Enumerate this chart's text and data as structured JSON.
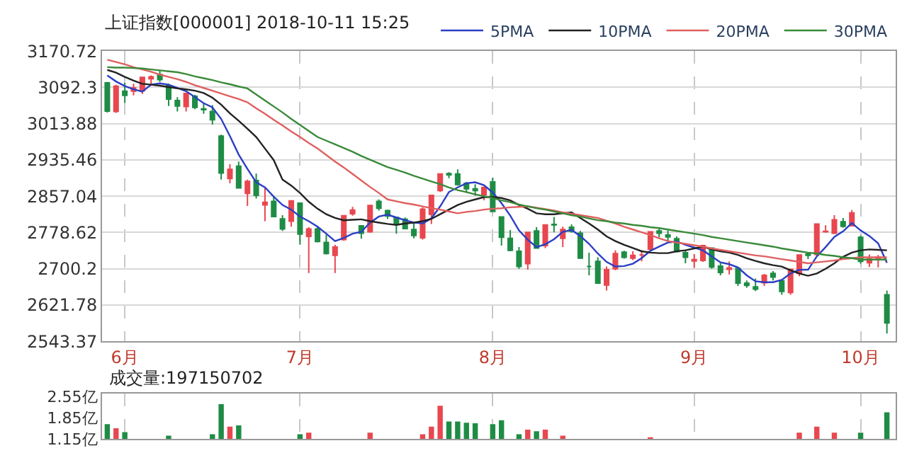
{
  "chart_data": [
    {
      "type": "candlestick",
      "title": "上证指数[000001] 2018-10-11 15:25",
      "categories": [
        null,
        null,
        "6月",
        null,
        null,
        null,
        null,
        null,
        null,
        null,
        null,
        null,
        null,
        null,
        null,
        null,
        null,
        null,
        null,
        null,
        null,
        null,
        "7月",
        null,
        null,
        null,
        null,
        null,
        null,
        null,
        null,
        null,
        null,
        null,
        null,
        null,
        null,
        null,
        null,
        null,
        null,
        null,
        null,
        null,
        "8月",
        null,
        null,
        null,
        null,
        null,
        null,
        null,
        null,
        null,
        null,
        null,
        null,
        null,
        null,
        null,
        null,
        null,
        null,
        null,
        null,
        null,
        null,
        "9月",
        null,
        null,
        null,
        null,
        null,
        null,
        null,
        null,
        null,
        null,
        null,
        null,
        null,
        null,
        null,
        null,
        null,
        null,
        "10月",
        null,
        null,
        null
      ],
      "ohlc": [
        [
          3102,
          3104,
          3038,
          3041
        ],
        [
          3040,
          3098,
          3037,
          3095
        ],
        [
          3084,
          3102,
          3059,
          3075
        ],
        [
          3084,
          3100,
          3075,
          3091
        ],
        [
          3085,
          3115,
          3078,
          3114
        ],
        [
          3111,
          3118,
          3098,
          3115
        ],
        [
          3120,
          3128,
          3104,
          3109
        ],
        [
          3096,
          3100,
          3052,
          3067
        ],
        [
          3064,
          3071,
          3040,
          3052
        ],
        [
          3051,
          3081,
          3040,
          3079
        ],
        [
          3073,
          3076,
          3045,
          3049
        ],
        [
          3046,
          3059,
          3035,
          3044
        ],
        [
          3040,
          3054,
          3012,
          3022
        ],
        [
          2987,
          2990,
          2893,
          2907
        ],
        [
          2895,
          2926,
          2885,
          2915
        ],
        [
          2922,
          2932,
          2874,
          2875
        ],
        [
          2863,
          2893,
          2836,
          2889
        ],
        [
          2891,
          2906,
          2852,
          2859
        ],
        [
          2838,
          2874,
          2803,
          2844
        ],
        [
          2846,
          2856,
          2812,
          2813
        ],
        [
          2808,
          2816,
          2782,
          2786
        ],
        [
          2803,
          2848,
          2791,
          2847
        ],
        [
          2842,
          2842,
          2752,
          2775
        ],
        [
          2770,
          2790,
          2691,
          2786
        ],
        [
          2786,
          2793,
          2757,
          2759
        ],
        [
          2757,
          2774,
          2731,
          2733
        ],
        [
          2729,
          2752,
          2691,
          2747
        ],
        [
          2763,
          2815,
          2761,
          2815
        ],
        [
          2819,
          2834,
          2815,
          2827
        ],
        [
          2793,
          2793,
          2765,
          2777
        ],
        [
          2780,
          2837,
          2778,
          2837
        ],
        [
          2846,
          2850,
          2826,
          2831
        ],
        [
          2826,
          2828,
          2808,
          2814
        ],
        [
          2811,
          2812,
          2776,
          2798
        ],
        [
          2807,
          2811,
          2787,
          2787
        ],
        [
          2785,
          2799,
          2766,
          2772
        ],
        [
          2767,
          2833,
          2763,
          2829
        ],
        [
          2818,
          2860,
          2797,
          2859
        ],
        [
          2869,
          2905,
          2866,
          2905
        ],
        [
          2906,
          2909,
          2896,
          2903
        ],
        [
          2905,
          2915,
          2880,
          2882
        ],
        [
          2885,
          2888,
          2864,
          2873
        ],
        [
          2873,
          2883,
          2858,
          2869
        ],
        [
          2860,
          2878,
          2848,
          2876
        ],
        [
          2888,
          2897,
          2823,
          2824
        ],
        [
          2812,
          2813,
          2750,
          2768
        ],
        [
          2766,
          2784,
          2738,
          2740
        ],
        [
          2738,
          2747,
          2700,
          2705
        ],
        [
          2711,
          2779,
          2698,
          2779
        ],
        [
          2782,
          2790,
          2745,
          2745
        ],
        [
          2750,
          2796,
          2745,
          2795
        ],
        [
          2796,
          2812,
          2779,
          2795
        ],
        [
          2766,
          2791,
          2747,
          2785
        ],
        [
          2790,
          2796,
          2778,
          2781
        ],
        [
          2777,
          2782,
          2723,
          2723
        ],
        [
          2705,
          2735,
          2686,
          2705
        ],
        [
          2716,
          2725,
          2669,
          2669
        ],
        [
          2665,
          2705,
          2653,
          2698
        ],
        [
          2700,
          2740,
          2697,
          2733
        ],
        [
          2736,
          2739,
          2722,
          2725
        ],
        [
          2723,
          2738,
          2719,
          2729
        ],
        [
          2730,
          2740,
          2716,
          2730
        ],
        [
          2742,
          2780,
          2742,
          2780
        ],
        [
          2782,
          2790,
          2768,
          2777
        ],
        [
          2773,
          2783,
          2759,
          2769
        ],
        [
          2765,
          2770,
          2736,
          2737
        ],
        [
          2735,
          2741,
          2712,
          2725
        ],
        [
          2717,
          2732,
          2702,
          2720
        ],
        [
          2718,
          2752,
          2715,
          2750
        ],
        [
          2745,
          2745,
          2700,
          2704
        ],
        [
          2706,
          2712,
          2686,
          2692
        ],
        [
          2699,
          2716,
          2688,
          2702
        ],
        [
          2701,
          2703,
          2663,
          2669
        ],
        [
          2669,
          2675,
          2659,
          2664
        ],
        [
          2661,
          2679,
          2652,
          2656
        ],
        [
          2670,
          2689,
          2663,
          2686
        ],
        [
          2690,
          2695,
          2675,
          2682
        ],
        [
          2674,
          2676,
          2644,
          2651
        ],
        [
          2649,
          2699,
          2644,
          2699
        ],
        [
          2690,
          2731,
          2684,
          2730
        ],
        [
          2732,
          2735,
          2721,
          2729
        ],
        [
          2731,
          2797,
          2727,
          2797
        ],
        [
          2780,
          2794,
          2778,
          2781
        ],
        [
          2777,
          2816,
          2775,
          2806
        ],
        [
          2802,
          2810,
          2789,
          2792
        ],
        [
          2793,
          2827,
          2793,
          2821
        ],
        [
          2768,
          2772,
          2711,
          2716
        ],
        [
          2713,
          2731,
          2704,
          2721
        ],
        [
          2723,
          2730,
          2703,
          2725
        ],
        [
          2644,
          2653,
          2560,
          2583
        ]
      ],
      "colors": [
        "#1e8c45",
        "#e8474f",
        "#1e8c45",
        "#e8474f",
        "#e8474f",
        "#e8474f",
        "#1e8c45",
        "#1e8c45",
        "#1e8c45",
        "#e8474f",
        "#1e8c45",
        "#1e8c45",
        "#1e8c45",
        "#1e8c45",
        "#e8474f",
        "#1e8c45",
        "#e8474f",
        "#1e8c45",
        "#e8474f",
        "#1e8c45",
        "#1e8c45",
        "#e8474f",
        "#1e8c45",
        "#e8474f",
        "#1e8c45",
        "#1e8c45",
        "#e8474f",
        "#e8474f",
        "#e8474f",
        "#1e8c45",
        "#e8474f",
        "#1e8c45",
        "#1e8c45",
        "#1e8c45",
        "#1e8c45",
        "#1e8c45",
        "#e8474f",
        "#e8474f",
        "#e8474f",
        "#1e8c45",
        "#1e8c45",
        "#1e8c45",
        "#1e8c45",
        "#e8474f",
        "#1e8c45",
        "#1e8c45",
        "#1e8c45",
        "#1e8c45",
        "#e8474f",
        "#1e8c45",
        "#e8474f",
        "#1e8c45",
        "#e8474f",
        "#1e8c45",
        "#1e8c45",
        "#1e8c45",
        "#1e8c45",
        "#e8474f",
        "#e8474f",
        "#1e8c45",
        "#e8474f",
        "#e8474f",
        "#e8474f",
        "#1e8c45",
        "#1e8c45",
        "#1e8c45",
        "#1e8c45",
        "#e8474f",
        "#e8474f",
        "#1e8c45",
        "#1e8c45",
        "#e8474f",
        "#1e8c45",
        "#1e8c45",
        "#1e8c45",
        "#e8474f",
        "#1e8c45",
        "#1e8c45",
        "#e8474f",
        "#e8474f",
        "#1e8c45",
        "#e8474f",
        "#e8474f",
        "#e8474f",
        "#1e8c45",
        "#e8474f",
        "#1e8c45",
        "#e8474f",
        "#e8474f",
        "#1e8c45"
      ],
      "series": [
        {
          "name": "5PMA",
          "type": "line",
          "color": "#2b3fc4",
          "values": [
            3118,
            3105,
            3095,
            3088,
            3083,
            3098,
            3101,
            3098,
            3091,
            3084,
            3071,
            3058,
            3049,
            3024,
            2987,
            2947,
            2916,
            2887,
            2876,
            2856,
            2838,
            2828,
            2813,
            2803,
            2791,
            2776,
            2760,
            2767,
            2776,
            2780,
            2800,
            2813,
            2817,
            2811,
            2805,
            2800,
            2798,
            2809,
            2835,
            2866,
            2876,
            2885,
            2887,
            2881,
            2865,
            2842,
            2815,
            2783,
            2763,
            2747,
            2753,
            2764,
            2780,
            2784,
            2771,
            2754,
            2733,
            2715,
            2705,
            2706,
            2711,
            2723,
            2739,
            2748,
            2757,
            2759,
            2752,
            2746,
            2740,
            2727,
            2714,
            2710,
            2703,
            2686,
            2673,
            2671,
            2671,
            2676,
            2690,
            2698,
            2698,
            2727,
            2747,
            2769,
            2781,
            2799,
            2783,
            2771,
            2755,
            2713
          ]
        },
        {
          "name": "10PMA",
          "type": "line",
          "color": "#222222",
          "values": [
            3130,
            3124,
            3115,
            3107,
            3100,
            3098,
            3096,
            3093,
            3090,
            3088,
            3085,
            3080,
            3070,
            3055,
            3036,
            3020,
            3003,
            2985,
            2960,
            2935,
            2893,
            2880,
            2864,
            2845,
            2830,
            2818,
            2810,
            2805,
            2806,
            2807,
            2803,
            2800,
            2797,
            2795,
            2798,
            2800,
            2803,
            2808,
            2818,
            2828,
            2838,
            2845,
            2850,
            2855,
            2855,
            2853,
            2848,
            2838,
            2830,
            2820,
            2818,
            2818,
            2820,
            2822,
            2810,
            2798,
            2785,
            2770,
            2760,
            2752,
            2745,
            2738,
            2735,
            2734,
            2734,
            2738,
            2740,
            2744,
            2748,
            2742,
            2738,
            2735,
            2730,
            2723,
            2717,
            2712,
            2708,
            2705,
            2697,
            2690,
            2685,
            2690,
            2700,
            2712,
            2726,
            2735,
            2740,
            2742,
            2741,
            2740
          ]
        },
        {
          "name": "20PMA",
          "type": "line",
          "color": "#e06060",
          "values": [
            3152,
            3147,
            3142,
            3136,
            3131,
            3126,
            3120,
            3115,
            3110,
            3104,
            3097,
            3091,
            3085,
            3079,
            3073,
            3067,
            3060,
            3047,
            3035,
            3022,
            3010,
            2997,
            2985,
            2972,
            2960,
            2946,
            2932,
            2919,
            2905,
            2891,
            2877,
            2864,
            2850,
            2846,
            2842,
            2839,
            2835,
            2831,
            2828,
            2824,
            2820,
            2823,
            2825,
            2828,
            2830,
            2831,
            2833,
            2834,
            2835,
            2832,
            2829,
            2826,
            2822,
            2819,
            2816,
            2813,
            2810,
            2804,
            2798,
            2791,
            2785,
            2779,
            2773,
            2766,
            2760,
            2757,
            2754,
            2751,
            2748,
            2744,
            2741,
            2738,
            2735,
            2732,
            2729,
            2727,
            2724,
            2721,
            2718,
            2715,
            2712,
            2714,
            2716,
            2718,
            2721,
            2723,
            2725,
            2725,
            2725,
            2725
          ]
        },
        {
          "name": "30PMA",
          "type": "line",
          "color": "#3a8a3a",
          "values": [
            3136,
            3135,
            3135,
            3134,
            3133,
            3131,
            3129,
            3127,
            3125,
            3121,
            3116,
            3112,
            3108,
            3103,
            3099,
            3094,
            3090,
            3077,
            3064,
            3051,
            3038,
            3024,
            3011,
            2998,
            2985,
            2977,
            2969,
            2961,
            2953,
            2944,
            2936,
            2928,
            2920,
            2914,
            2908,
            2901,
            2895,
            2889,
            2883,
            2876,
            2870,
            2866,
            2861,
            2857,
            2853,
            2848,
            2844,
            2839,
            2835,
            2831,
            2828,
            2824,
            2820,
            2816,
            2813,
            2809,
            2805,
            2803,
            2800,
            2798,
            2795,
            2793,
            2790,
            2788,
            2785,
            2782,
            2779,
            2776,
            2773,
            2769,
            2766,
            2763,
            2760,
            2757,
            2754,
            2751,
            2748,
            2744,
            2741,
            2738,
            2735,
            2733,
            2730,
            2728,
            2725,
            2723,
            2720,
            2720,
            2720,
            2720
          ]
        }
      ],
      "ylim": [
        2543.37,
        3170.72
      ],
      "yticks": [
        2543.37,
        2621.78,
        2700.2,
        2778.62,
        2857.04,
        2935.46,
        3013.88,
        3092.3,
        3170.72
      ],
      "grid": true,
      "legend": "top right"
    },
    {
      "type": "bar",
      "title": "成交量:197150702",
      "categories": [
        null,
        null,
        null,
        null,
        null,
        null,
        null,
        null,
        null,
        null,
        null,
        null,
        null,
        null,
        null,
        null,
        null,
        null,
        null,
        null,
        null,
        null,
        null,
        null,
        null,
        null,
        null,
        null,
        null,
        null,
        null,
        null,
        null,
        null,
        null,
        null,
        null,
        null,
        null,
        null,
        null,
        null,
        null,
        null,
        null,
        null,
        null,
        null,
        null,
        null,
        null,
        null,
        null,
        null,
        null,
        null,
        null,
        null,
        null,
        null,
        null,
        null,
        null,
        null,
        null,
        null,
        null,
        null,
        null,
        null,
        null,
        null,
        null,
        null,
        null,
        null,
        null,
        null,
        null,
        null,
        null,
        null,
        null,
        null,
        null,
        null,
        null,
        null,
        null,
        null
      ],
      "values": [
        1.63,
        1.5,
        1.37,
        null,
        null,
        null,
        null,
        1.25,
        null,
        null,
        null,
        null,
        1.3,
        2.29,
        1.55,
        1.59,
        null,
        null,
        null,
        null,
        null,
        null,
        1.3,
        1.35,
        null,
        null,
        null,
        null,
        null,
        null,
        1.35,
        null,
        null,
        null,
        null,
        null,
        1.3,
        1.55,
        2.24,
        1.72,
        1.72,
        1.68,
        1.66,
        null,
        1.63,
        1.76,
        null,
        1.3,
        1.45,
        1.4,
        1.45,
        null,
        1.25,
        null,
        null,
        null,
        null,
        null,
        null,
        null,
        null,
        null,
        1.2,
        null,
        null,
        null,
        null,
        null,
        null,
        null,
        null,
        null,
        null,
        null,
        null,
        null,
        null,
        null,
        null,
        1.35,
        null,
        1.55,
        null,
        1.35,
        null,
        null,
        1.35,
        null,
        null,
        2.02
      ],
      "colors": [
        "#1e8c45",
        "#e8474f",
        "#1e8c45",
        "#e8474f",
        "#e8474f",
        "#e8474f",
        "#1e8c45",
        "#1e8c45",
        "#1e8c45",
        "#e8474f",
        "#1e8c45",
        "#1e8c45",
        "#1e8c45",
        "#1e8c45",
        "#e8474f",
        "#1e8c45",
        "#e8474f",
        "#1e8c45",
        "#e8474f",
        "#1e8c45",
        "#1e8c45",
        "#e8474f",
        "#1e8c45",
        "#e8474f",
        "#1e8c45",
        "#1e8c45",
        "#e8474f",
        "#e8474f",
        "#e8474f",
        "#1e8c45",
        "#e8474f",
        "#1e8c45",
        "#1e8c45",
        "#1e8c45",
        "#1e8c45",
        "#1e8c45",
        "#e8474f",
        "#e8474f",
        "#e8474f",
        "#1e8c45",
        "#1e8c45",
        "#1e8c45",
        "#1e8c45",
        "#e8474f",
        "#1e8c45",
        "#1e8c45",
        "#1e8c45",
        "#1e8c45",
        "#e8474f",
        "#1e8c45",
        "#e8474f",
        "#1e8c45",
        "#e8474f",
        "#1e8c45",
        "#1e8c45",
        "#1e8c45",
        "#1e8c45",
        "#e8474f",
        "#e8474f",
        "#1e8c45",
        "#e8474f",
        "#e8474f",
        "#e8474f",
        "#1e8c45",
        "#1e8c45",
        "#1e8c45",
        "#1e8c45",
        "#e8474f",
        "#e8474f",
        "#1e8c45",
        "#1e8c45",
        "#e8474f",
        "#1e8c45",
        "#1e8c45",
        "#1e8c45",
        "#e8474f",
        "#1e8c45",
        "#1e8c45",
        "#e8474f",
        "#e8474f",
        "#1e8c45",
        "#e8474f",
        "#e8474f",
        "#e8474f",
        "#1e8c45",
        "#e8474f",
        "#1e8c45",
        "#e8474f",
        "#e8474f",
        "#1e8c45"
      ],
      "ylim": [
        1.15,
        2.65
      ],
      "yticks": [
        {
          "value": 1.15,
          "label": "1.15亿"
        },
        {
          "value": 1.85,
          "label": "1.85亿"
        },
        {
          "value": 2.55,
          "label": "2.55亿"
        }
      ],
      "tick_labels": "y",
      "grid": "x"
    }
  ]
}
